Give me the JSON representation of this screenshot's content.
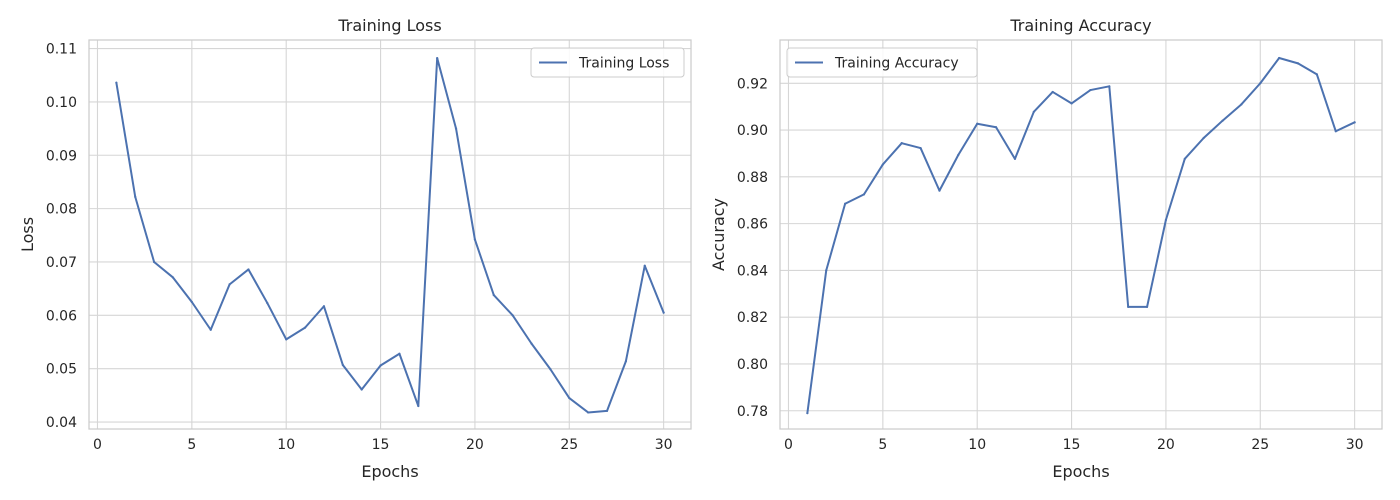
{
  "chart_data": [
    {
      "type": "line",
      "title": "Training Loss",
      "xlabel": "Epochs",
      "ylabel": "Loss",
      "xlim": [
        -0.45,
        31.45
      ],
      "ylim": [
        0.0387,
        0.1116
      ],
      "xticks": [
        0,
        5,
        10,
        15,
        20,
        25,
        30
      ],
      "yticks": [
        0.04,
        0.05,
        0.06,
        0.07,
        0.08,
        0.09,
        0.1,
        0.11
      ],
      "ytick_labels": [
        "0.04",
        "0.05",
        "0.06",
        "0.07",
        "0.08",
        "0.09",
        "0.10",
        "0.11"
      ],
      "grid": true,
      "legend_position": "top-right",
      "x": [
        1,
        2,
        3,
        4,
        5,
        6,
        7,
        8,
        9,
        10,
        11,
        12,
        13,
        14,
        15,
        16,
        17,
        18,
        19,
        20,
        21,
        22,
        23,
        24,
        25,
        26,
        27,
        28,
        29,
        30
      ],
      "series": [
        {
          "name": "Training Loss",
          "color": "#4c72b0",
          "values": [
            0.1036,
            0.0822,
            0.07,
            0.0671,
            0.0625,
            0.0573,
            0.0658,
            0.0686,
            0.0623,
            0.0555,
            0.0577,
            0.0617,
            0.0507,
            0.0461,
            0.0506,
            0.0528,
            0.043,
            0.1082,
            0.095,
            0.0742,
            0.0638,
            0.06,
            0.0547,
            0.0499,
            0.0445,
            0.0418,
            0.0421,
            0.0514,
            0.0693,
            0.0605
          ]
        }
      ]
    },
    {
      "type": "line",
      "title": "Training Accuracy",
      "xlabel": "Epochs",
      "ylabel": "Accuracy",
      "xlim": [
        -0.45,
        31.45
      ],
      "ylim": [
        0.7722,
        0.9385
      ],
      "xticks": [
        0,
        5,
        10,
        15,
        20,
        25,
        30
      ],
      "yticks": [
        0.78,
        0.8,
        0.82,
        0.84,
        0.86,
        0.88,
        0.9,
        0.92
      ],
      "ytick_labels": [
        "0.78",
        "0.80",
        "0.82",
        "0.84",
        "0.86",
        "0.88",
        "0.90",
        "0.92"
      ],
      "grid": true,
      "legend_position": "top-left",
      "x": [
        1,
        2,
        3,
        4,
        5,
        6,
        7,
        8,
        9,
        10,
        11,
        12,
        13,
        14,
        15,
        16,
        17,
        18,
        19,
        20,
        21,
        22,
        23,
        24,
        25,
        26,
        27,
        28,
        29,
        30
      ],
      "series": [
        {
          "name": "Training Accuracy",
          "color": "#4c72b0",
          "values": [
            0.779,
            0.84,
            0.8685,
            0.8725,
            0.8853,
            0.8944,
            0.8923,
            0.8741,
            0.8894,
            0.9027,
            0.9012,
            0.8877,
            0.9078,
            0.9163,
            0.9114,
            0.9171,
            0.9187,
            0.8244,
            0.8244,
            0.8616,
            0.8877,
            0.8966,
            0.904,
            0.911,
            0.92,
            0.9308,
            0.9285,
            0.9238,
            0.8995,
            0.9033
          ]
        }
      ]
    }
  ]
}
